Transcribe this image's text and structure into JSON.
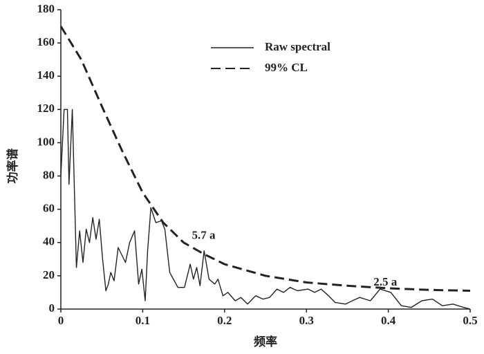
{
  "chart_data": {
    "type": "line",
    "xlabel": "频率",
    "ylabel": "功率谱",
    "xlim": [
      0,
      0.5
    ],
    "xticks": [
      0,
      0.1,
      0.2,
      0.3,
      0.4,
      0.5
    ],
    "ylim": [
      0,
      180
    ],
    "yticks": [
      0,
      20,
      40,
      60,
      80,
      100,
      120,
      140,
      160,
      180
    ],
    "legend": "upper right",
    "annotations": [
      {
        "text": "5.7 a",
        "x": 0.16,
        "y": 48
      },
      {
        "text": "2.5 a",
        "x": 0.382,
        "y": 20
      }
    ],
    "series": [
      {
        "name": "Raw spectral",
        "color": "#222222",
        "style": "solid",
        "x": [
          0,
          0.004,
          0.008,
          0.01,
          0.014,
          0.019,
          0.023,
          0.027,
          0.031,
          0.035,
          0.039,
          0.043,
          0.047,
          0.051,
          0.055,
          0.058,
          0.061,
          0.065,
          0.07,
          0.075,
          0.079,
          0.084,
          0.09,
          0.095,
          0.099,
          0.103,
          0.106,
          0.11,
          0.116,
          0.123,
          0.127,
          0.133,
          0.143,
          0.151,
          0.158,
          0.162,
          0.166,
          0.17,
          0.175,
          0.181,
          0.188,
          0.192,
          0.198,
          0.204,
          0.213,
          0.22,
          0.228,
          0.238,
          0.247,
          0.255,
          0.264,
          0.272,
          0.28,
          0.289,
          0.302,
          0.31,
          0.318,
          0.327,
          0.335,
          0.348,
          0.356,
          0.365,
          0.378,
          0.39,
          0.403,
          0.416,
          0.428,
          0.441,
          0.454,
          0.466,
          0.479,
          0.492,
          0.5
        ],
        "values": [
          80,
          120,
          120,
          75,
          120,
          25,
          47,
          28,
          48,
          40,
          55,
          42,
          54,
          30,
          11,
          15,
          22,
          17,
          37,
          32,
          28,
          40,
          47,
          15,
          24,
          5,
          35,
          61,
          52,
          53,
          48,
          22,
          13,
          13,
          27,
          18,
          25,
          14,
          35,
          18,
          15,
          18,
          8,
          10,
          5,
          7,
          3,
          8,
          6,
          7,
          12,
          10,
          13,
          11,
          12,
          10,
          12,
          8,
          4,
          3,
          5,
          7,
          5,
          12,
          10,
          2,
          1,
          5,
          6,
          2,
          3,
          1,
          0
        ]
      },
      {
        "name": "99% CL",
        "color": "#222222",
        "style": "dashed",
        "x": [
          0,
          0.025,
          0.05,
          0.075,
          0.1,
          0.125,
          0.15,
          0.175,
          0.2,
          0.25,
          0.3,
          0.35,
          0.4,
          0.45,
          0.5
        ],
        "values": [
          170,
          150,
          122,
          95,
          70,
          52,
          40,
          33,
          27,
          20,
          16,
          14,
          12.5,
          11.5,
          11
        ]
      }
    ]
  }
}
